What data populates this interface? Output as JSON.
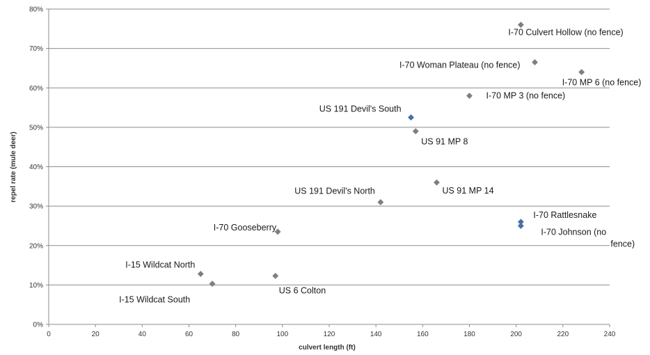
{
  "chart_data": {
    "type": "scatter",
    "title": "",
    "xlabel": "culvert length (ft)",
    "ylabel": "repel rate (mule deer)",
    "xlim": [
      0,
      240
    ],
    "ylim": [
      0,
      80
    ],
    "x_ticks": [
      0,
      20,
      40,
      60,
      80,
      100,
      120,
      140,
      160,
      180,
      200,
      220,
      240
    ],
    "x_tick_labels": [
      "0",
      "20",
      "40",
      "60",
      "80",
      "100",
      "120",
      "140",
      "160",
      "180",
      "200",
      "220",
      "240"
    ],
    "y_ticks": [
      0,
      10,
      20,
      30,
      40,
      50,
      60,
      70,
      80
    ],
    "y_tick_labels": [
      "0%",
      "10%",
      "20%",
      "30%",
      "40%",
      "50%",
      "60%",
      "70%",
      "80%"
    ],
    "grid": "horizontal",
    "legend": "none",
    "colors": {
      "marker": "#7f7f7f",
      "highlight": "#4a6fa5",
      "grid": "#8c8c8c",
      "text": "#1a1a1a"
    },
    "points": [
      {
        "label": "I-70 Culvert Hollow (no fence)",
        "x": 202,
        "y": 76,
        "color": "#7f7f7f",
        "anchor": "start",
        "dx": -18,
        "dy": 15
      },
      {
        "label": "I-70 Woman Plateau (no fence)",
        "x": 208,
        "y": 66.5,
        "color": "#7f7f7f",
        "anchor": "end",
        "dx": -21,
        "dy": 8
      },
      {
        "label": "I-70 MP 6 (no fence)",
        "x": 228,
        "y": 64,
        "color": "#7f7f7f",
        "anchor": "start",
        "dx": -28,
        "dy": 19
      },
      {
        "label": "I-70 MP 3 (no fence)",
        "x": 180,
        "y": 58,
        "color": "#7f7f7f",
        "anchor": "start",
        "dx": 24,
        "dy": 4
      },
      {
        "label": "US 191 Devil's South",
        "x": 155,
        "y": 52.5,
        "color": "#4a6fa5",
        "anchor": "end",
        "dx": -14,
        "dy": -8
      },
      {
        "label": "US 91 MP 8",
        "x": 157,
        "y": 49,
        "color": "#7f7f7f",
        "anchor": "start",
        "dx": 8,
        "dy": 19
      },
      {
        "label": "US 91 MP 14",
        "x": 166,
        "y": 36,
        "color": "#7f7f7f",
        "anchor": "start",
        "dx": 8,
        "dy": 16
      },
      {
        "label": "US 191 Devil's North",
        "x": 142,
        "y": 31,
        "color": "#7f7f7f",
        "anchor": "end",
        "dx": -8,
        "dy": -12
      },
      {
        "label": "I-70 Rattlesnake",
        "x": 202,
        "y": 26,
        "color": "#4a6fa5",
        "anchor": "start",
        "dx": 18,
        "dy": -6
      },
      {
        "label": "I-70 Johnson (no",
        "x": 202,
        "y": 25,
        "color": "#4a6fa5",
        "anchor": "start",
        "dx": 29,
        "dy": 13,
        "label_line2": "fence)"
      },
      {
        "label": "I-70 Gooseberry",
        "x": 98,
        "y": 23.5,
        "color": "#7f7f7f",
        "anchor": "end",
        "dx": -2,
        "dy": -2
      },
      {
        "label": "I-15 Wildcat North",
        "x": 65,
        "y": 12.8,
        "color": "#7f7f7f",
        "anchor": "end",
        "dx": -8,
        "dy": -9
      },
      {
        "label": "I-15 Wildcat South",
        "x": 70,
        "y": 10.3,
        "color": "#7f7f7f",
        "anchor": "start",
        "dx": -134,
        "dy": 27
      },
      {
        "label": "US 6 Colton",
        "x": 97,
        "y": 12.3,
        "color": "#7f7f7f",
        "anchor": "start",
        "dx": 5,
        "dy": 25
      }
    ]
  }
}
